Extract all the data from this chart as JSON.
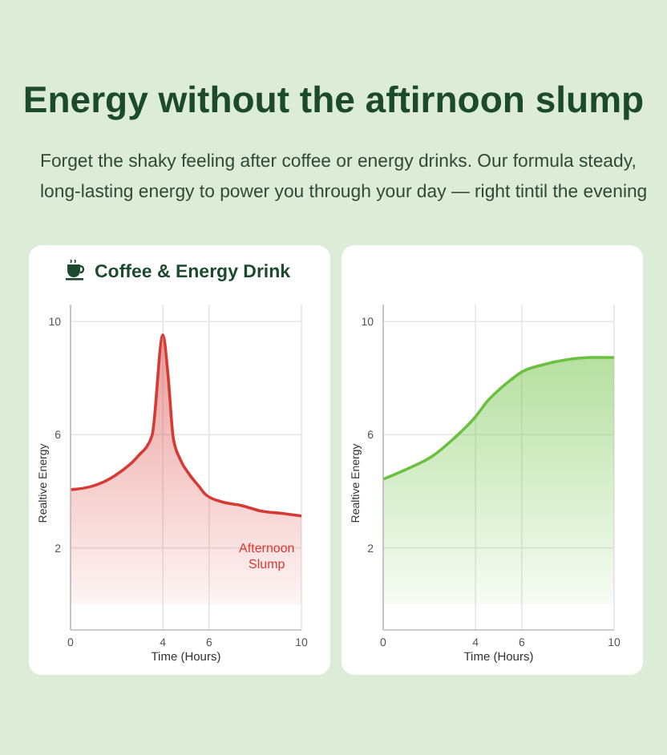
{
  "chart_data": [
    {
      "type": "other",
      "title": "Energy without the aftirnoon slump",
      "subtitle": "Forget the shaky feeling after coffee or energy drinks. Our formula steady, long-lasting energy to power you through your day — right tintil the evening"
    },
    {
      "type": "area",
      "title": "Coffee & Energy Drink",
      "xlabel": "Time (Hours)",
      "ylabel": "Realtive Energy",
      "xlim": [
        0,
        10
      ],
      "ylim": [
        -0.9,
        10.6
      ],
      "xticks": [
        0,
        4,
        6,
        10
      ],
      "yticks": [
        2,
        6,
        10
      ],
      "grid": true,
      "annotations": [
        "Afternoon Slump"
      ],
      "series": [
        {
          "color": "#d63a34",
          "x": [
            0,
            0.85,
            1.95,
            2.9,
            3.53,
            4,
            4.22,
            4.45,
            4.75,
            5.17,
            5.58,
            5.83,
            6.54,
            7.4,
            8.28,
            9.15,
            10
          ],
          "values": [
            4.06,
            4.16,
            4.57,
            5.22,
            5.97,
            9.53,
            8.13,
            5.88,
            5.13,
            4.57,
            4.16,
            3.9,
            3.63,
            3.5,
            3.3,
            3.22,
            3.13
          ]
        }
      ]
    },
    {
      "type": "area",
      "xlabel": "Time (Hours)",
      "ylabel": "Realtive Energy",
      "xlim": [
        0,
        10
      ],
      "ylim": [
        -0.9,
        10.6
      ],
      "xticks": [
        0,
        4,
        6,
        10
      ],
      "yticks": [
        2,
        6,
        10
      ],
      "grid": true,
      "series": [
        {
          "color": "#6cc040",
          "x": [
            0,
            0.98,
            2.11,
            3.09,
            4,
            4.53,
            5.03,
            5.53,
            6,
            6.9,
            7.95,
            9,
            10
          ],
          "values": [
            4.43,
            4.77,
            5.23,
            5.89,
            6.64,
            7.2,
            7.6,
            7.94,
            8.22,
            8.47,
            8.65,
            8.73,
            8.73
          ]
        }
      ]
    }
  ]
}
